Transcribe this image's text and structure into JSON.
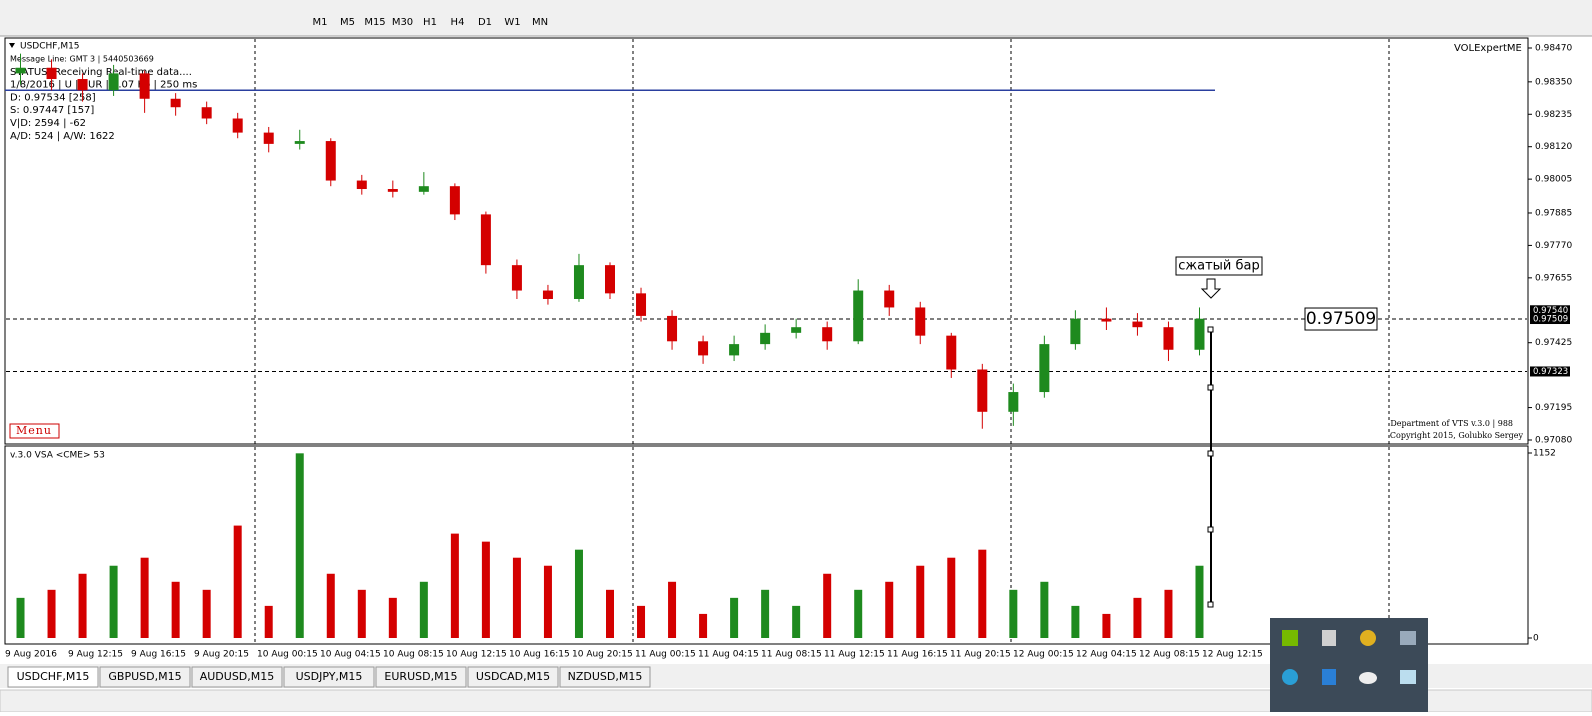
{
  "toolbar": {
    "timeframes": [
      "M1",
      "M5",
      "M15",
      "M30",
      "H1",
      "H4",
      "D1",
      "W1",
      "MN"
    ]
  },
  "chart_data": [
    {
      "type": "candlestick",
      "title": "USDCHF,M15",
      "info_lines": [
        "Message Line: GMT 3 | 5440503669",
        "STATUS: Receiving Real-time data....",
        "1/8/2016 | U | EUR | 0.07 Kb | 250 ms",
        "D: 0.97534 [258]",
        "S: 0.97447 [157]",
        "V|D: 2594 | -62",
        "A/D: 524 | A/W: 1622"
      ],
      "indicator_name": "VOLExpertME",
      "menu": "Menu",
      "footer": [
        "Department of VTS  v.3.0 | 988",
        "Copyright 2015, Golubko Sergey"
      ],
      "annotation": "сжатый бар",
      "current_price": {
        "value": 0.97509,
        "label": "0.97509"
      },
      "up_color": "#1e8a1e",
      "down_color": "#d40000",
      "open": [
        0.9838,
        0.984,
        0.9836,
        0.9832,
        0.9838,
        0.9829,
        0.9826,
        0.9822,
        0.9817,
        0.9813,
        0.9814,
        0.98,
        0.9797,
        0.9796,
        0.9798,
        0.9788,
        0.977,
        0.9761,
        0.9758,
        0.977,
        0.976,
        0.9752,
        0.9743,
        0.9738,
        0.9742,
        0.9746,
        0.9748,
        0.9743,
        0.9761,
        0.9755,
        0.9745,
        0.9733,
        0.9718,
        0.9725,
        0.9742,
        0.9751,
        0.975,
        0.9748,
        0.974
      ],
      "high": [
        0.9845,
        0.9843,
        0.9838,
        0.9841,
        0.9839,
        0.9831,
        0.9828,
        0.9824,
        0.9819,
        0.9818,
        0.9815,
        0.9802,
        0.98,
        0.9803,
        0.9799,
        0.9789,
        0.9772,
        0.9763,
        0.9774,
        0.9771,
        0.9762,
        0.9754,
        0.9745,
        0.9745,
        0.9749,
        0.9751,
        0.975,
        0.9765,
        0.9763,
        0.9757,
        0.9746,
        0.9735,
        0.9728,
        0.9745,
        0.9754,
        0.9755,
        0.9753,
        0.975,
        0.9755
      ],
      "low": [
        0.9834,
        0.9832,
        0.9828,
        0.983,
        0.9824,
        0.9823,
        0.982,
        0.9815,
        0.981,
        0.9811,
        0.9798,
        0.9795,
        0.9794,
        0.9795,
        0.9786,
        0.9767,
        0.9758,
        0.9756,
        0.9757,
        0.9758,
        0.975,
        0.974,
        0.9735,
        0.9736,
        0.974,
        0.9744,
        0.974,
        0.9742,
        0.9752,
        0.9742,
        0.973,
        0.9712,
        0.9713,
        0.9723,
        0.974,
        0.9747,
        0.9745,
        0.9736,
        0.9738
      ],
      "close": [
        0.984,
        0.9836,
        0.9832,
        0.9838,
        0.9829,
        0.9826,
        0.9822,
        0.9817,
        0.9813,
        0.9814,
        0.98,
        0.9797,
        0.9796,
        0.9798,
        0.9788,
        0.977,
        0.9761,
        0.9758,
        0.977,
        0.976,
        0.9752,
        0.9743,
        0.9738,
        0.9742,
        0.9746,
        0.9748,
        0.9743,
        0.9761,
        0.9755,
        0.9745,
        0.9733,
        0.9718,
        0.9725,
        0.9742,
        0.9751,
        0.975,
        0.9748,
        0.974,
        0.9751
      ],
      "x_labels": [
        "9 Aug 2016",
        "9 Aug 12:15",
        "9 Aug 16:15",
        "9 Aug 20:15",
        "10 Aug 00:15",
        "10 Aug 04:15",
        "10 Aug 08:15",
        "10 Aug 12:15",
        "10 Aug 16:15",
        "10 Aug 20:15",
        "11 Aug 00:15",
        "11 Aug 04:15",
        "11 Aug 08:15",
        "11 Aug 12:15",
        "11 Aug 16:15",
        "11 Aug 20:15",
        "12 Aug 00:15",
        "12 Aug 04:15",
        "12 Aug 08:15",
        "12 Aug 12:15"
      ],
      "ylim": [
        0.9708,
        0.9847
      ],
      "yticks": [
        {
          "value": 0.9847,
          "label": "0.98470"
        },
        {
          "value": 0.9835,
          "label": "0.98350"
        },
        {
          "value": 0.98235,
          "label": "0.98235"
        },
        {
          "value": 0.9812,
          "label": "0.98120"
        },
        {
          "value": 0.98005,
          "label": "0.98005"
        },
        {
          "value": 0.97885,
          "label": "0.97885"
        },
        {
          "value": 0.9777,
          "label": "0.97770"
        },
        {
          "value": 0.97655,
          "label": "0.97655"
        },
        {
          "value": 0.97425,
          "label": "0.97425"
        },
        {
          "value": 0.97195,
          "label": "0.97195"
        },
        {
          "value": 0.9708,
          "label": "0.97080"
        }
      ],
      "levels": [
        {
          "value": 0.9832,
          "color": "#2a3f9f",
          "style": "solid"
        },
        {
          "value": 0.97509,
          "color": "#000000",
          "style": "dashed"
        },
        {
          "value": 0.97323,
          "color": "#000000",
          "style": "dashed"
        }
      ],
      "price_labels": [
        {
          "value": 0.9754,
          "label": "0.97540"
        },
        {
          "value": 0.97509,
          "label": "0.97509"
        },
        {
          "value": 0.97323,
          "label": "0.97323"
        }
      ]
    },
    {
      "type": "bar",
      "title": "v.3.0 VSA <CME> 53",
      "values": [
        250,
        300,
        400,
        450,
        500,
        350,
        300,
        700,
        200,
        1150,
        400,
        300,
        250,
        350,
        650,
        600,
        500,
        450,
        550,
        300,
        200,
        350,
        150,
        250,
        300,
        200,
        400,
        300,
        350,
        450,
        500,
        550,
        300,
        350,
        200,
        150,
        250,
        300,
        450
      ],
      "ylim": [
        0,
        1152
      ],
      "yticks": [
        1152,
        0
      ]
    }
  ],
  "tabs": [
    "USDCHF,M15",
    "GBPUSD,M15",
    "AUDUSD,M15",
    "USDJPY,M15",
    "EURUSD,M15",
    "USDCAD,M15",
    "NZDUSD,M15"
  ]
}
